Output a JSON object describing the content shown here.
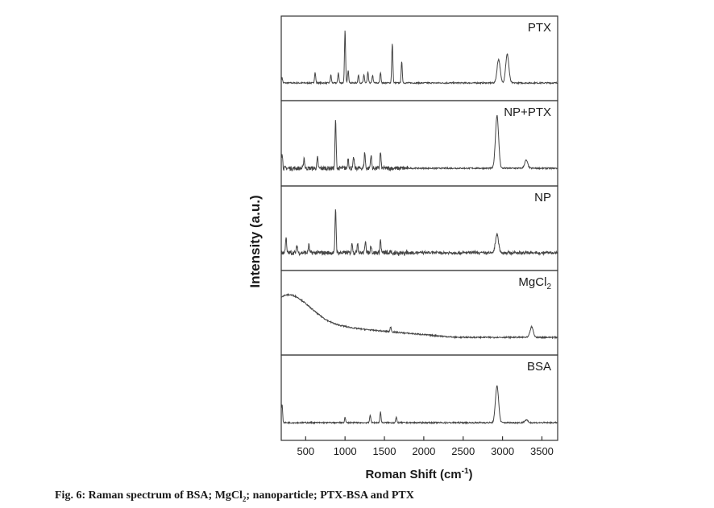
{
  "chart_data": {
    "type": "line",
    "xlabel": "Roman Shift (cm⁻¹)",
    "ylabel": "Intensity (a.u.)",
    "xlim": [
      190,
      3700
    ],
    "xticks": [
      "500",
      "1000",
      "1500",
      "2000",
      "2500",
      "3000",
      "3500"
    ],
    "xtick_values": [
      500,
      1000,
      1500,
      2000,
      2500,
      3000,
      3500
    ],
    "layout": "stacked panels, shared x axis, no y tick labels, no grid, label top-right in each panel",
    "line_color": "#444444",
    "panels": [
      {
        "label": "PTX",
        "peaks": [
          [
            200,
            0.1
          ],
          [
            620,
            0.2
          ],
          [
            820,
            0.15
          ],
          [
            915,
            0.2
          ],
          [
            1000,
            1.0
          ],
          [
            1040,
            0.25
          ],
          [
            1170,
            0.15
          ],
          [
            1240,
            0.15
          ],
          [
            1290,
            0.2
          ],
          [
            1350,
            0.15
          ],
          [
            1450,
            0.2
          ],
          [
            1600,
            0.75
          ],
          [
            1720,
            0.4
          ],
          [
            2950,
            0.45
          ],
          [
            3060,
            0.55
          ]
        ]
      },
      {
        "label": "NP+PTX",
        "peaks": [
          [
            200,
            0.3
          ],
          [
            480,
            0.2
          ],
          [
            650,
            0.2
          ],
          [
            880,
            0.9
          ],
          [
            1040,
            0.2
          ],
          [
            1110,
            0.2
          ],
          [
            1250,
            0.3
          ],
          [
            1330,
            0.25
          ],
          [
            1450,
            0.3
          ],
          [
            2930,
            1.0
          ],
          [
            3300,
            0.15
          ]
        ]
      },
      {
        "label": "NP",
        "peaks": [
          [
            250,
            0.3
          ],
          [
            390,
            0.15
          ],
          [
            540,
            0.15
          ],
          [
            880,
            0.85
          ],
          [
            1090,
            0.2
          ],
          [
            1160,
            0.2
          ],
          [
            1260,
            0.25
          ],
          [
            1330,
            0.15
          ],
          [
            1450,
            0.25
          ],
          [
            2930,
            0.35
          ]
        ]
      },
      {
        "label_main": "MgCl",
        "label_sub": "2",
        "peaks": [
          [
            1580,
            0.1
          ],
          [
            3370,
            0.2
          ]
        ]
      },
      {
        "label": "BSA",
        "peaks": [
          [
            200,
            0.35
          ],
          [
            1000,
            0.1
          ],
          [
            1320,
            0.15
          ],
          [
            1450,
            0.2
          ],
          [
            1650,
            0.1
          ],
          [
            2930,
            0.7
          ],
          [
            3300,
            0.05
          ]
        ]
      }
    ]
  },
  "caption": {
    "prefix": "Fig. 6: Raman spectrum of BSA; MgCl",
    "sub": "2",
    "suffix": "; nanoparticle; PTX-BSA and PTX"
  }
}
